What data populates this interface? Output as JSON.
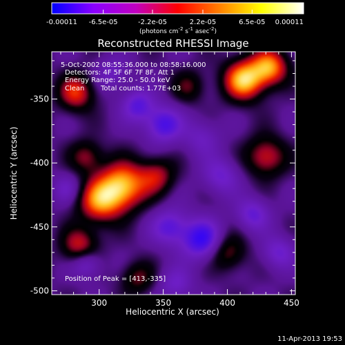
{
  "colorbar": {
    "ticks": [
      "-0.00011",
      "-6.5e-05",
      "-2.2e-05",
      "2.2e-05",
      "6.5e-05",
      "0.00011"
    ],
    "tick_values": [
      -0.00011,
      -6.5e-05,
      -2.2e-05,
      2.2e-05,
      6.5e-05,
      0.00011
    ],
    "range": [
      -0.00011,
      0.00011
    ],
    "units_main": "(photons cm",
    "units_sup1": "-2",
    "units_mid": " s",
    "units_sup2": "-1",
    "units_mid2": " asec",
    "units_sup3": "-2",
    "units_end": ")",
    "colors": [
      "#0000ff",
      "#8a00ff",
      "#c000c0",
      "#ff0000",
      "#ff8000",
      "#ffff00",
      "#ffffff"
    ]
  },
  "chart_data": {
    "type": "heatmap",
    "title": "Reconstructed RHESSI Image",
    "xlabel": "Heliocentric X (arcsec)",
    "ylabel": "Heliocentric Y (arcsec)",
    "xlim": [
      263,
      453
    ],
    "ylim": [
      -503,
      -313
    ],
    "xticks": [
      300,
      350,
      400,
      450
    ],
    "yticks": [
      -350,
      -400,
      -450,
      -500
    ],
    "annotations": [
      "5-Oct-2002 08:55:36.000 to 08:58:16.000",
      "Detectors: 4F 5F 6F 7F 8F, Att 1",
      "Energy Range: 25.0 - 50.0 keV",
      "Clean",
      "Total counts: 1.77E+03"
    ],
    "peak_label": "Position of Peak = [413,-335]",
    "peak": [
      413,
      -335
    ],
    "blobs": [
      {
        "x": 413,
        "y": -335,
        "intensity": 1.0,
        "sigma": 11
      },
      {
        "x": 433,
        "y": -325,
        "intensity": 0.85,
        "sigma": 10
      },
      {
        "x": 318,
        "y": -418,
        "intensity": 0.95,
        "sigma": 13
      },
      {
        "x": 300,
        "y": -430,
        "intensity": 0.75,
        "sigma": 12
      },
      {
        "x": 282,
        "y": -345,
        "intensity": 0.65,
        "sigma": 10
      },
      {
        "x": 285,
        "y": -465,
        "intensity": 0.6,
        "sigma": 10
      },
      {
        "x": 430,
        "y": -395,
        "intensity": 0.6,
        "sigma": 11
      },
      {
        "x": 345,
        "y": -410,
        "intensity": 0.5,
        "sigma": 10
      },
      {
        "x": 290,
        "y": -395,
        "intensity": 0.45,
        "sigma": 9
      },
      {
        "x": 400,
        "y": -470,
        "intensity": 0.45,
        "sigma": 10
      },
      {
        "x": 330,
        "y": -490,
        "intensity": 0.4,
        "sigma": 9
      },
      {
        "x": 370,
        "y": -340,
        "intensity": 0.35,
        "sigma": 9
      },
      {
        "x": 350,
        "y": -370,
        "intensity": -0.6,
        "sigma": 10
      },
      {
        "x": 330,
        "y": -355,
        "intensity": -0.5,
        "sigma": 9
      },
      {
        "x": 380,
        "y": -460,
        "intensity": -0.7,
        "sigma": 11
      },
      {
        "x": 355,
        "y": -450,
        "intensity": -0.5,
        "sigma": 10
      },
      {
        "x": 290,
        "y": -478,
        "intensity": -0.45,
        "sigma": 8
      },
      {
        "x": 395,
        "y": -410,
        "intensity": -0.4,
        "sigma": 10
      },
      {
        "x": 420,
        "y": -440,
        "intensity": -0.45,
        "sigma": 9
      },
      {
        "x": 380,
        "y": -380,
        "intensity": -0.3,
        "sigma": 10
      },
      {
        "x": 310,
        "y": -330,
        "intensity": -0.3,
        "sigma": 9
      },
      {
        "x": 440,
        "y": -470,
        "intensity": -0.4,
        "sigma": 9
      },
      {
        "x": 275,
        "y": -420,
        "intensity": -0.3,
        "sigma": 8
      },
      {
        "x": 360,
        "y": -495,
        "intensity": -0.35,
        "sigma": 9
      }
    ]
  },
  "footer": {
    "timestamp": "11-Apr-2013 19:53"
  }
}
